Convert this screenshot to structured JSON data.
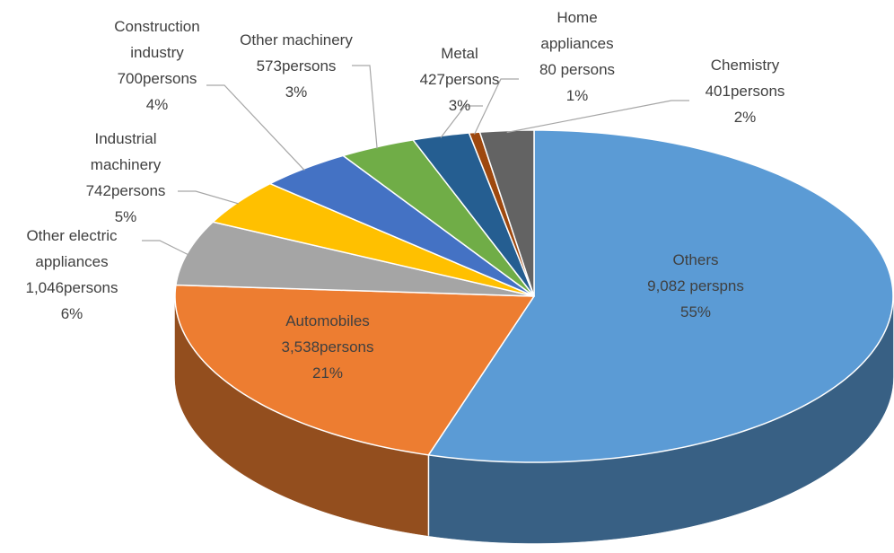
{
  "chart_data": {
    "type": "pie",
    "categories": [
      "Others",
      "Automobiles",
      "Other electric appliances",
      "Industrial machinery",
      "Construction industry",
      "Other machinery",
      "Metal",
      "Home appliances",
      "Chemistry"
    ],
    "values": [
      9082,
      3538,
      1046,
      742,
      700,
      573,
      427,
      80,
      401
    ],
    "value_labels": [
      "9,082 perspns",
      "3,538persons",
      "1,046persons",
      "742persons",
      "700persons",
      "573persons",
      "427persons",
      "80 persons",
      "401persons"
    ],
    "percent_labels": [
      "55%",
      "21%",
      "6%",
      "5%",
      "4%",
      "3%",
      "3%",
      "1%",
      "2%"
    ],
    "colors": [
      "#5b9bd5",
      "#ed7d31",
      "#a5a5a5",
      "#ffc000",
      "#4472c4",
      "#70ad47",
      "#255e91",
      "#9e480e",
      "#636363"
    ]
  }
}
